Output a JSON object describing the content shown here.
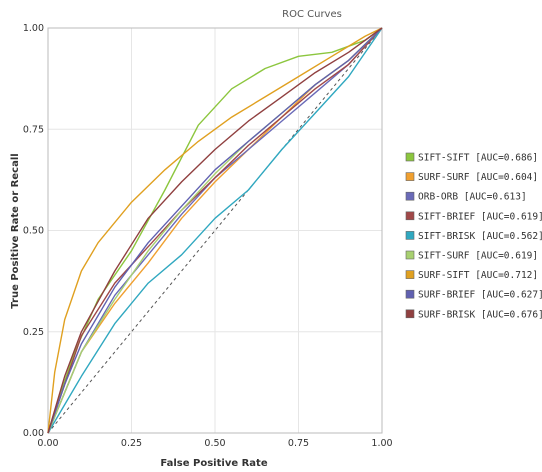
{
  "chart_data": {
    "type": "line",
    "title": "ROC Curves",
    "xlabel": "False Positive Rate",
    "ylabel": "True Positive Rate or Recall",
    "xlim": [
      0,
      1
    ],
    "ylim": [
      0,
      1
    ],
    "xticks": [
      "0.00",
      "0.25",
      "0.50",
      "0.75",
      "1.00"
    ],
    "yticks": [
      "0.00",
      "0.25",
      "0.50",
      "0.75",
      "1.00"
    ],
    "grid": true,
    "legend_position": "right",
    "reference_line": {
      "style": "dashed",
      "x": [
        0,
        1
      ],
      "y": [
        0,
        1
      ],
      "color": "#555555"
    },
    "series": [
      {
        "name": "SIFT-SIFT [AUC=0.686]",
        "color": "#8cc63e",
        "x": [
          0,
          0.03,
          0.08,
          0.15,
          0.25,
          0.35,
          0.45,
          0.55,
          0.65,
          0.75,
          0.85,
          0.95,
          1
        ],
        "y": [
          0,
          0.08,
          0.2,
          0.33,
          0.45,
          0.6,
          0.76,
          0.85,
          0.9,
          0.93,
          0.94,
          0.97,
          1
        ]
      },
      {
        "name": "SURF-SURF [AUC=0.604]",
        "color": "#f0a030",
        "x": [
          0,
          0.05,
          0.1,
          0.2,
          0.3,
          0.4,
          0.5,
          0.6,
          0.7,
          0.8,
          0.9,
          1
        ],
        "y": [
          0,
          0.1,
          0.2,
          0.32,
          0.42,
          0.53,
          0.62,
          0.7,
          0.78,
          0.86,
          0.92,
          1
        ]
      },
      {
        "name": "ORB-ORB [AUC=0.613]",
        "color": "#6a6ab8",
        "x": [
          0,
          0.05,
          0.1,
          0.2,
          0.3,
          0.4,
          0.5,
          0.6,
          0.7,
          0.8,
          0.9,
          1
        ],
        "y": [
          0,
          0.1,
          0.2,
          0.34,
          0.44,
          0.54,
          0.63,
          0.7,
          0.77,
          0.84,
          0.91,
          1
        ]
      },
      {
        "name": "SIFT-BRIEF [AUC=0.619]",
        "color": "#a04848",
        "x": [
          0,
          0.05,
          0.1,
          0.2,
          0.3,
          0.4,
          0.5,
          0.6,
          0.7,
          0.8,
          0.9,
          1
        ],
        "y": [
          0,
          0.12,
          0.24,
          0.37,
          0.46,
          0.55,
          0.63,
          0.71,
          0.78,
          0.85,
          0.91,
          1
        ]
      },
      {
        "name": "SIFT-BRISK [AUC=0.562]",
        "color": "#30a8c0",
        "x": [
          0,
          0.05,
          0.1,
          0.2,
          0.3,
          0.4,
          0.5,
          0.6,
          0.7,
          0.8,
          0.9,
          1
        ],
        "y": [
          0,
          0.07,
          0.14,
          0.27,
          0.37,
          0.44,
          0.53,
          0.6,
          0.7,
          0.79,
          0.88,
          1
        ]
      },
      {
        "name": "SIFT-SURF [AUC=0.619]",
        "color": "#a8d070",
        "x": [
          0,
          0.05,
          0.1,
          0.2,
          0.3,
          0.4,
          0.5,
          0.6,
          0.7,
          0.8,
          0.9,
          1
        ],
        "y": [
          0,
          0.1,
          0.2,
          0.33,
          0.45,
          0.55,
          0.64,
          0.72,
          0.79,
          0.86,
          0.92,
          1
        ]
      },
      {
        "name": "SURF-SIFT [AUC=0.712]",
        "color": "#e0a020",
        "x": [
          0,
          0.02,
          0.05,
          0.1,
          0.15,
          0.25,
          0.35,
          0.45,
          0.55,
          0.65,
          0.75,
          0.85,
          0.95,
          1
        ],
        "y": [
          0,
          0.15,
          0.28,
          0.4,
          0.47,
          0.57,
          0.65,
          0.72,
          0.78,
          0.83,
          0.88,
          0.93,
          0.98,
          1
        ]
      },
      {
        "name": "SURF-BRIEF [AUC=0.627]",
        "color": "#6060b0",
        "x": [
          0,
          0.05,
          0.1,
          0.2,
          0.3,
          0.4,
          0.5,
          0.6,
          0.7,
          0.8,
          0.9,
          1
        ],
        "y": [
          0,
          0.12,
          0.22,
          0.36,
          0.47,
          0.56,
          0.65,
          0.72,
          0.79,
          0.86,
          0.92,
          1
        ]
      },
      {
        "name": "SURF-BRISK [AUC=0.676]",
        "color": "#904040",
        "x": [
          0,
          0.05,
          0.1,
          0.2,
          0.3,
          0.4,
          0.5,
          0.6,
          0.7,
          0.8,
          0.9,
          1
        ],
        "y": [
          0,
          0.14,
          0.25,
          0.4,
          0.53,
          0.62,
          0.7,
          0.77,
          0.83,
          0.89,
          0.94,
          1
        ]
      }
    ]
  }
}
